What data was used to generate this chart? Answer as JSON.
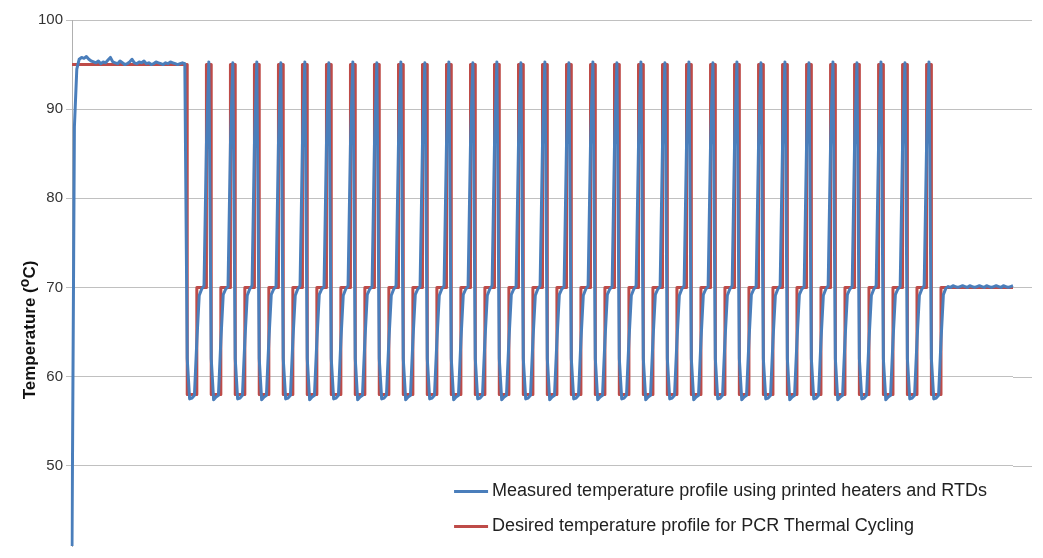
{
  "chart_data": {
    "type": "line",
    "ylabel": "Temperature ($^{o}$C)",
    "ylim": [
      41,
      100
    ],
    "yticks": [
      50,
      60,
      70,
      80,
      90,
      100
    ],
    "grid": "y",
    "legend": "bottom right",
    "marker": "none",
    "categories": [
      null,
      null,
      null,
      null,
      null,
      null,
      null,
      null,
      null,
      null,
      null,
      null,
      null,
      null,
      null,
      null,
      null,
      null,
      null,
      null,
      null,
      null,
      null,
      null,
      null,
      null,
      null,
      null,
      null,
      null,
      null,
      null,
      null,
      null,
      null,
      null,
      null,
      null,
      null,
      null,
      null,
      null,
      null,
      null,
      null,
      null,
      null,
      null,
      null,
      null,
      null,
      null,
      null,
      null,
      null,
      null,
      null,
      null,
      null,
      null,
      null,
      null,
      null,
      null,
      null,
      null,
      null,
      null,
      null,
      null,
      null,
      null,
      null,
      null,
      null,
      null,
      null,
      null,
      null,
      null,
      null,
      null,
      null,
      null,
      null,
      null,
      null,
      null,
      null,
      null,
      null,
      null,
      null,
      null,
      null,
      null,
      null,
      null,
      null,
      null,
      null,
      null,
      null,
      null,
      null,
      null,
      null,
      null,
      null,
      null,
      null,
      null,
      null,
      null,
      null,
      null,
      null,
      null,
      null,
      null,
      null,
      null,
      null,
      null,
      null,
      null,
      null,
      null,
      null,
      null,
      null,
      null,
      null,
      null,
      null,
      null,
      null,
      null,
      null,
      null,
      null,
      null,
      null,
      null,
      null,
      null,
      null,
      null,
      null,
      null,
      null,
      null,
      null,
      null,
      null,
      null,
      null,
      null,
      null,
      null,
      null,
      null,
      null,
      null,
      null,
      null,
      null,
      null,
      null,
      null,
      null,
      null,
      null,
      null,
      null,
      null,
      null,
      null,
      null,
      null,
      null,
      null,
      null,
      null,
      null,
      null,
      null,
      null,
      null,
      null,
      null,
      null,
      null,
      null,
      null,
      null,
      null,
      null,
      null,
      null,
      null,
      null,
      null,
      null,
      null,
      null,
      null,
      null,
      null,
      null,
      null,
      null,
      null,
      null,
      null,
      null,
      null,
      null,
      null,
      null,
      null,
      null,
      null,
      null,
      null,
      null,
      null,
      null,
      null,
      null,
      null,
      null,
      null,
      null,
      null,
      null,
      null,
      null,
      null,
      null,
      null,
      null,
      null,
      null,
      null,
      null,
      null,
      null,
      null,
      null,
      null,
      null,
      null,
      null,
      null,
      null,
      null,
      null,
      null,
      null,
      null,
      null,
      null,
      null,
      null,
      null,
      null,
      null,
      null,
      null,
      null,
      null,
      null,
      null,
      null,
      null,
      null,
      null,
      null,
      null,
      null,
      null,
      null,
      null,
      null,
      null,
      null,
      null,
      null,
      null,
      null,
      null,
      null,
      null,
      null,
      null,
      null,
      null,
      null,
      null,
      null,
      null,
      null,
      null,
      null,
      null,
      null,
      null,
      null,
      null,
      null,
      null,
      null,
      null,
      null,
      null,
      null,
      null,
      null,
      null,
      null,
      null,
      null,
      null,
      null,
      null,
      null,
      null,
      null,
      null,
      null,
      null,
      null,
      null,
      null,
      null,
      null,
      null,
      null,
      null,
      null,
      null,
      null,
      null,
      null,
      null,
      null,
      null,
      null,
      null,
      null,
      null,
      null,
      null,
      null,
      null,
      null,
      null,
      null,
      null,
      null,
      null,
      null,
      null,
      null,
      null,
      null,
      null,
      null,
      null,
      null,
      null,
      null,
      null,
      null,
      null,
      null,
      null,
      null,
      null,
      null,
      null,
      null,
      null,
      null,
      null,
      null,
      null,
      null,
      null,
      null,
      null,
      null
    ],
    "series": [
      {
        "name": "Measured temperature profile using printed heaters and RTDs",
        "color": "#4a7ebb",
        "values": [
          41,
          88,
          94.5,
          95.6,
          95.8,
          95.7,
          95.9,
          95.6,
          95.4,
          95.3,
          95.2,
          95.4,
          95.1,
          95.3,
          95.2,
          95.5,
          95.8,
          95.3,
          95.2,
          95.1,
          95.4,
          95.2,
          95,
          95.1,
          95.3,
          95.6,
          95.2,
          95.1,
          95.3,
          95.2,
          95.4,
          95.1,
          95.2,
          95,
          95.1,
          95.3,
          95.2,
          95.1,
          95,
          95.2,
          95.1,
          95.3,
          95.2,
          95.1,
          95,
          95.1,
          95.2,
          95.1,
          62,
          57.5,
          57.6,
          57.9,
          64,
          69.1,
          69.8,
          70.2,
          86,
          95.3,
          62,
          57.4,
          57.7,
          57.9,
          64,
          69.2,
          69.8,
          70.1,
          86,
          95.2,
          62,
          57.5,
          57.6,
          57.9,
          64,
          69.1,
          69.8,
          70.2,
          86,
          95.3,
          62,
          57.4,
          57.7,
          57.9,
          64,
          69.2,
          69.8,
          70.1,
          86,
          95.2,
          62,
          57.5,
          57.6,
          57.9,
          64,
          69.1,
          69.8,
          70.2,
          86,
          95.3,
          62,
          57.4,
          57.7,
          57.9,
          64,
          69.2,
          69.8,
          70.1,
          86,
          95.2,
          62,
          57.5,
          57.6,
          57.9,
          64,
          69.1,
          69.8,
          70.2,
          86,
          95.3,
          62,
          57.4,
          57.7,
          57.9,
          64,
          69.2,
          69.8,
          70.1,
          86,
          95.2,
          62,
          57.5,
          57.6,
          57.9,
          64,
          69.1,
          69.8,
          70.2,
          86,
          95.3,
          62,
          57.4,
          57.7,
          57.9,
          64,
          69.2,
          69.8,
          70.1,
          86,
          95.2,
          62,
          57.5,
          57.6,
          57.9,
          64,
          69.1,
          69.8,
          70.2,
          86,
          95.3,
          62,
          57.4,
          57.7,
          57.9,
          64,
          69.2,
          69.8,
          70.1,
          86,
          95.2,
          62,
          57.5,
          57.6,
          57.9,
          64,
          69.1,
          69.8,
          70.2,
          86,
          95.3,
          62,
          57.4,
          57.7,
          57.9,
          64,
          69.2,
          69.8,
          70.1,
          86,
          95.2,
          62,
          57.5,
          57.6,
          57.9,
          64,
          69.1,
          69.8,
          70.2,
          86,
          95.3,
          62,
          57.4,
          57.7,
          57.9,
          64,
          69.2,
          69.8,
          70.1,
          86,
          95.2,
          62,
          57.5,
          57.6,
          57.9,
          64,
          69.1,
          69.8,
          70.2,
          86,
          95.3,
          62,
          57.4,
          57.7,
          57.9,
          64,
          69.2,
          69.8,
          70.1,
          86,
          95.2,
          62,
          57.5,
          57.6,
          57.9,
          64,
          69.1,
          69.8,
          70.2,
          86,
          95.3,
          62,
          57.4,
          57.7,
          57.9,
          64,
          69.2,
          69.8,
          70.1,
          86,
          95.2,
          62,
          57.5,
          57.6,
          57.9,
          64,
          69.1,
          69.8,
          70.2,
          86,
          95.3,
          62,
          57.4,
          57.7,
          57.9,
          64,
          69.2,
          69.8,
          70.1,
          86,
          95.2,
          62,
          57.5,
          57.6,
          57.9,
          64,
          69.1,
          69.8,
          70.2,
          86,
          95.3,
          62,
          57.4,
          57.7,
          57.9,
          64,
          69.2,
          69.8,
          70.1,
          86,
          95.2,
          62,
          57.5,
          57.6,
          57.9,
          64,
          69.1,
          69.8,
          70.2,
          86,
          95.3,
          62,
          57.4,
          57.7,
          57.9,
          64,
          69.2,
          69.8,
          70.1,
          86,
          95.2,
          62,
          57.5,
          57.6,
          57.9,
          64,
          69.1,
          69.8,
          70.2,
          86,
          95.3,
          62,
          57.4,
          57.7,
          57.9,
          64,
          69.2,
          69.8,
          70.1,
          86,
          95.2,
          62,
          57.5,
          57.6,
          57.9,
          64,
          69.1,
          69.8,
          70.2,
          86,
          95.3,
          62,
          57.4,
          57.7,
          57.9,
          64,
          69.2,
          69.8,
          70.1,
          86,
          95.2,
          62,
          57.5,
          57.6,
          57.9,
          64,
          69.1,
          69.8,
          70.2,
          86,
          95.3,
          62,
          57.5,
          57.6,
          57.9,
          64,
          69.2,
          69.9,
          70.1,
          70,
          70.2,
          70.1,
          70,
          70.1,
          70.2,
          70.1,
          70,
          70.2,
          70.1,
          70,
          70.1,
          70.2,
          70.1,
          70,
          70.2,
          70.1,
          70,
          70.1,
          70.2,
          70.1,
          70,
          70.2,
          70.1,
          70,
          70.1,
          70.2
        ]
      },
      {
        "name": "Desired temperature profile for PCR Thermal Cycling",
        "color": "#be4b48",
        "type": "step",
        "values": [
          95,
          95,
          95,
          95,
          95,
          95,
          95,
          95,
          95,
          95,
          95,
          95,
          95,
          95,
          95,
          95,
          95,
          95,
          95,
          95,
          95,
          95,
          95,
          95,
          95,
          95,
          95,
          95,
          95,
          95,
          95,
          95,
          95,
          95,
          95,
          95,
          95,
          95,
          95,
          95,
          95,
          95,
          95,
          95,
          95,
          95,
          95,
          95,
          58,
          58,
          58,
          58,
          70,
          70,
          70,
          70,
          95,
          95,
          58,
          58,
          58,
          58,
          70,
          70,
          70,
          70,
          95,
          95,
          58,
          58,
          58,
          58,
          70,
          70,
          70,
          70,
          95,
          95,
          58,
          58,
          58,
          58,
          70,
          70,
          70,
          70,
          95,
          95,
          58,
          58,
          58,
          58,
          70,
          70,
          70,
          70,
          95,
          95,
          58,
          58,
          58,
          58,
          70,
          70,
          70,
          70,
          95,
          95,
          58,
          58,
          58,
          58,
          70,
          70,
          70,
          70,
          95,
          95,
          58,
          58,
          58,
          58,
          70,
          70,
          70,
          70,
          95,
          95,
          58,
          58,
          58,
          58,
          70,
          70,
          70,
          70,
          95,
          95,
          58,
          58,
          58,
          58,
          70,
          70,
          70,
          70,
          95,
          95,
          58,
          58,
          58,
          58,
          70,
          70,
          70,
          70,
          95,
          95,
          58,
          58,
          58,
          58,
          70,
          70,
          70,
          70,
          95,
          95,
          58,
          58,
          58,
          58,
          70,
          70,
          70,
          70,
          95,
          95,
          58,
          58,
          58,
          58,
          70,
          70,
          70,
          70,
          95,
          95,
          58,
          58,
          58,
          58,
          70,
          70,
          70,
          70,
          95,
          95,
          58,
          58,
          58,
          58,
          70,
          70,
          70,
          70,
          95,
          95,
          58,
          58,
          58,
          58,
          70,
          70,
          70,
          70,
          95,
          95,
          58,
          58,
          58,
          58,
          70,
          70,
          70,
          70,
          95,
          95,
          58,
          58,
          58,
          58,
          70,
          70,
          70,
          70,
          95,
          95,
          58,
          58,
          58,
          58,
          70,
          70,
          70,
          70,
          95,
          95,
          58,
          58,
          58,
          58,
          70,
          70,
          70,
          70,
          95,
          95,
          58,
          58,
          58,
          58,
          70,
          70,
          70,
          70,
          95,
          95,
          58,
          58,
          58,
          58,
          70,
          70,
          70,
          70,
          95,
          95,
          58,
          58,
          58,
          58,
          70,
          70,
          70,
          70,
          95,
          95,
          58,
          58,
          58,
          58,
          70,
          70,
          70,
          70,
          95,
          95,
          58,
          58,
          58,
          58,
          70,
          70,
          70,
          70,
          95,
          95,
          58,
          58,
          58,
          58,
          70,
          70,
          70,
          70,
          95,
          95,
          58,
          58,
          58,
          58,
          70,
          70,
          70,
          70,
          95,
          95,
          58,
          58,
          58,
          58,
          70,
          70,
          70,
          70,
          95,
          95,
          58,
          58,
          58,
          58,
          70,
          70,
          70,
          70,
          95,
          95,
          58,
          58,
          58,
          58,
          70,
          70,
          70,
          70,
          95,
          95,
          58,
          58,
          58,
          58,
          70,
          70,
          70,
          70,
          70,
          70,
          70,
          70,
          70,
          70,
          70,
          70,
          70,
          70,
          70,
          70,
          70,
          70,
          70,
          70,
          70,
          70,
          70,
          70,
          70,
          70,
          70,
          70,
          70,
          70,
          70
        ]
      }
    ]
  }
}
